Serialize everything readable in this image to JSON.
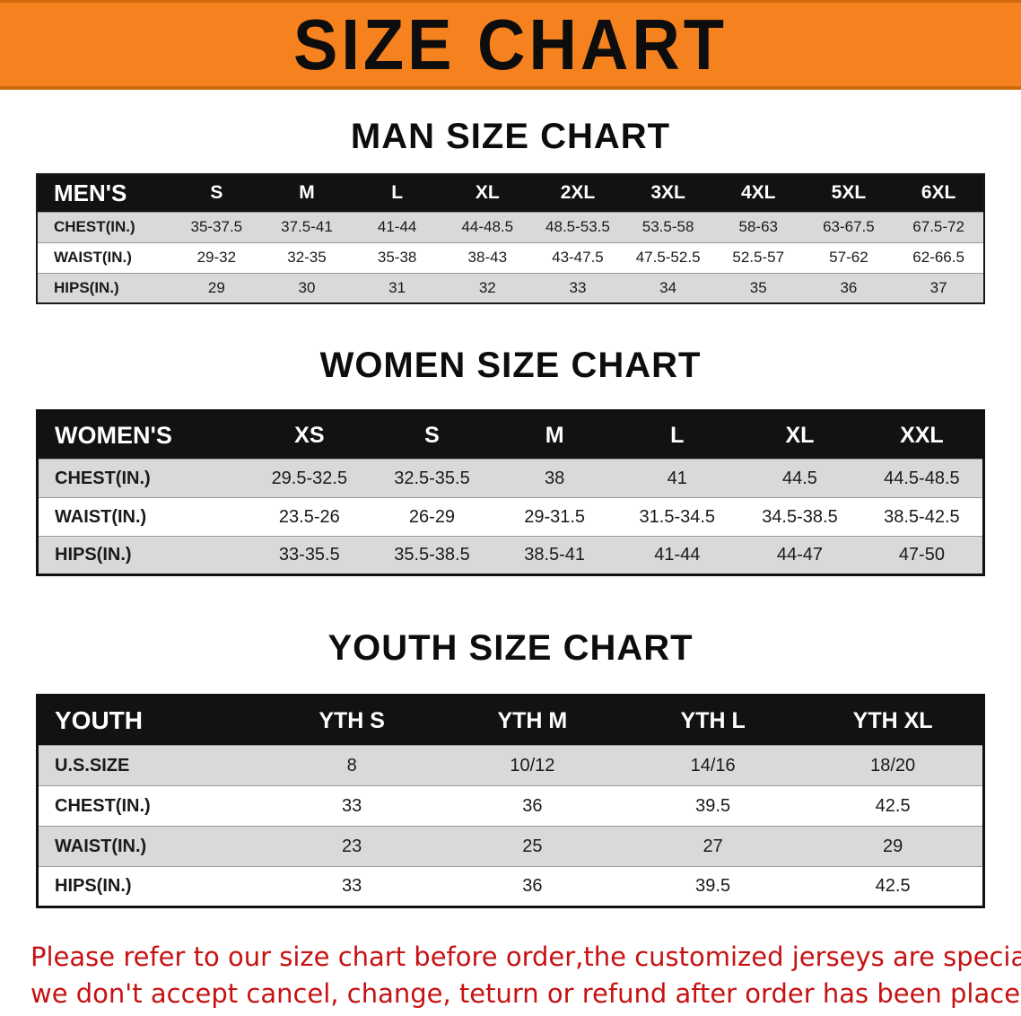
{
  "banner": {
    "title": "SIZE CHART"
  },
  "sections": [
    {
      "id": "men",
      "heading": "MAN SIZE CHART",
      "table": {
        "label": "MEN'S",
        "columns": [
          "S",
          "M",
          "L",
          "XL",
          "2XL",
          "3XL",
          "4XL",
          "5XL",
          "6XL"
        ],
        "rows": [
          {
            "label": "CHEST(IN.)",
            "values": [
              "35-37.5",
              "37.5-41",
              "41-44",
              "44-48.5",
              "48.5-53.5",
              "53.5-58",
              "58-63",
              "63-67.5",
              "67.5-72"
            ]
          },
          {
            "label": "WAIST(IN.)",
            "values": [
              "29-32",
              "32-35",
              "35-38",
              "38-43",
              "43-47.5",
              "47.5-52.5",
              "52.5-57",
              "57-62",
              "62-66.5"
            ]
          },
          {
            "label": "HIPS(IN.)",
            "values": [
              "29",
              "30",
              "31",
              "32",
              "33",
              "34",
              "35",
              "36",
              "37"
            ]
          }
        ]
      }
    },
    {
      "id": "women",
      "heading": "WOMEN SIZE CHART",
      "table": {
        "label": "WOMEN'S",
        "columns": [
          "XS",
          "S",
          "M",
          "L",
          "XL",
          "XXL"
        ],
        "rows": [
          {
            "label": "CHEST(IN.)",
            "values": [
              "29.5-32.5",
              "32.5-35.5",
              "38",
              "41",
              "44.5",
              "44.5-48.5"
            ]
          },
          {
            "label": "WAIST(IN.)",
            "values": [
              "23.5-26",
              "26-29",
              "29-31.5",
              "31.5-34.5",
              "34.5-38.5",
              "38.5-42.5"
            ]
          },
          {
            "label": "HIPS(IN.)",
            "values": [
              "33-35.5",
              "35.5-38.5",
              "38.5-41",
              "41-44",
              "44-47",
              "47-50"
            ]
          }
        ]
      }
    },
    {
      "id": "youth",
      "heading": "YOUTH SIZE CHART",
      "table": {
        "label": "YOUTH",
        "columns": [
          "YTH S",
          "YTH M",
          "YTH L",
          "YTH XL"
        ],
        "rows": [
          {
            "label": "U.S.SIZE",
            "values": [
              "8",
              "10/12",
              "14/16",
              "18/20"
            ]
          },
          {
            "label": "CHEST(IN.)",
            "values": [
              "33",
              "36",
              "39.5",
              "42.5"
            ]
          },
          {
            "label": "WAIST(IN.)",
            "values": [
              "23",
              "25",
              "27",
              "29"
            ]
          },
          {
            "label": "HIPS(IN.)",
            "values": [
              "33",
              "36",
              "39.5",
              "42.5"
            ]
          }
        ]
      }
    }
  ],
  "footer": {
    "line1": "Please refer to our size chart before order,the customized jerseys are special products,",
    "line2": "we don't accept cancel, change, teturn or refund after order has been placed!"
  },
  "colors": {
    "banner_orange": "#f5821f",
    "banner_edge": "#cf6a0a",
    "header_black": "#121212",
    "row_shade": "#d9d9d9",
    "notice_red": "#c61212"
  }
}
